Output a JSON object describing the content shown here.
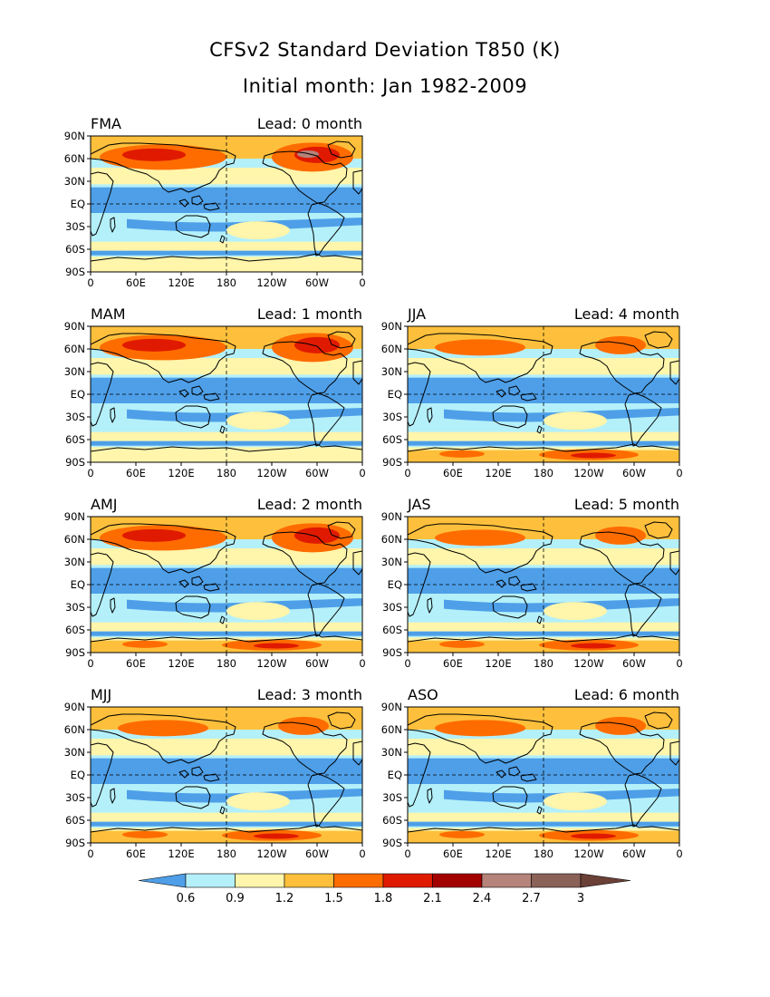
{
  "title": "CFSv2 Standard Deviation T850 (K)",
  "subtitle": "Initial month: Jan 1982-2009",
  "lat_labels": [
    "90N",
    "60N",
    "30N",
    "EQ",
    "30S",
    "60S",
    "90S"
  ],
  "lon_labels": [
    "0",
    "60E",
    "120E",
    "180",
    "120W",
    "60W",
    "0"
  ],
  "panels": [
    {
      "season": "FMA",
      "lead": "Lead: 0 month"
    },
    {
      "season": "MAM",
      "lead": "Lead: 1 month"
    },
    {
      "season": "JJA",
      "lead": "Lead: 4 month"
    },
    {
      "season": "AMJ",
      "lead": "Lead: 2 month"
    },
    {
      "season": "JAS",
      "lead": "Lead: 5 month"
    },
    {
      "season": "MJJ",
      "lead": "Lead: 3 month"
    },
    {
      "season": "ASO",
      "lead": "Lead: 6 month"
    }
  ],
  "colorbar": {
    "labels": [
      "0.6",
      "0.9",
      "1.2",
      "1.5",
      "1.8",
      "2.1",
      "2.4",
      "2.7",
      "3"
    ],
    "colors": [
      "#4e9fe8",
      "#b4f0fa",
      "#fff5ab",
      "#fec03c",
      "#fe6c00",
      "#e01a00",
      "#a30000",
      "#b5837a",
      "#8b6258",
      "#6a4037"
    ]
  },
  "colors": {
    "land_outline": "#000000",
    "grid": "#000000"
  }
}
